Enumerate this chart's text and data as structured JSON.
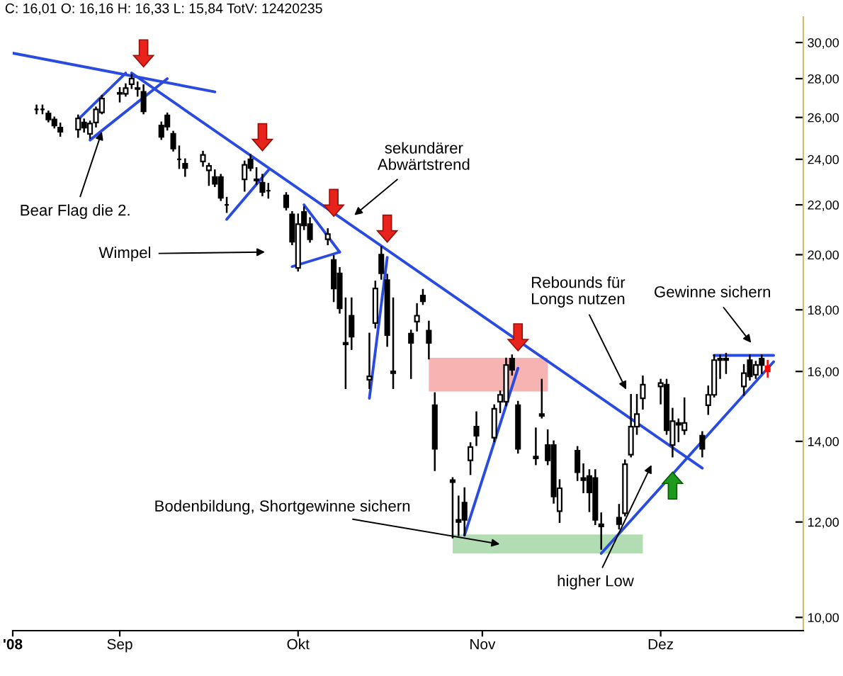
{
  "chart_data": {
    "type": "candlestick",
    "title": "C: 16,01 O: 16,16 H: 16,33 L: 15,84 TotV: 12420235",
    "x": [
      "2008-08-18",
      "2008-08-19",
      "2008-08-20",
      "2008-08-21",
      "2008-08-22",
      "2008-08-25",
      "2008-08-26",
      "2008-08-27",
      "2008-08-28",
      "2008-08-29",
      "2008-09-01",
      "2008-09-02",
      "2008-09-03",
      "2008-09-04",
      "2008-09-05",
      "2008-09-08",
      "2008-09-09",
      "2008-09-10",
      "2008-09-11",
      "2008-09-12",
      "2008-09-15",
      "2008-09-16",
      "2008-09-17",
      "2008-09-18",
      "2008-09-19",
      "2008-09-22",
      "2008-09-23",
      "2008-09-24",
      "2008-09-25",
      "2008-09-26",
      "2008-09-29",
      "2008-09-30",
      "2008-10-01",
      "2008-10-02",
      "2008-10-03",
      "2008-10-06",
      "2008-10-07",
      "2008-10-08",
      "2008-10-09",
      "2008-10-10",
      "2008-10-13",
      "2008-10-14",
      "2008-10-15",
      "2008-10-16",
      "2008-10-17",
      "2008-10-20",
      "2008-10-21",
      "2008-10-22",
      "2008-10-23",
      "2008-10-24",
      "2008-10-27",
      "2008-10-28",
      "2008-10-29",
      "2008-10-30",
      "2008-10-31",
      "2008-11-03",
      "2008-11-04",
      "2008-11-05",
      "2008-11-06",
      "2008-11-07",
      "2008-11-10",
      "2008-11-11",
      "2008-11-12",
      "2008-11-13",
      "2008-11-14",
      "2008-11-17",
      "2008-11-18",
      "2008-11-19",
      "2008-11-20",
      "2008-11-21",
      "2008-11-24",
      "2008-11-25",
      "2008-11-26",
      "2008-11-27",
      "2008-11-28",
      "2008-12-01",
      "2008-12-02",
      "2008-12-03",
      "2008-12-04",
      "2008-12-05",
      "2008-12-08",
      "2008-12-09",
      "2008-12-10",
      "2008-12-11",
      "2008-12-12",
      "2008-12-15",
      "2008-12-16",
      "2008-12-17",
      "2008-12-18",
      "2008-12-19"
    ],
    "ohlc": [
      [
        26.4,
        26.6,
        26.2,
        26.4
      ],
      [
        26.4,
        26.6,
        26.2,
        26.4
      ],
      [
        26.2,
        26.3,
        25.8,
        25.9
      ],
      [
        25.9,
        26.0,
        25.5,
        25.6
      ],
      [
        25.5,
        25.7,
        25.1,
        25.3
      ],
      [
        25.4,
        26.1,
        25.05,
        25.95
      ],
      [
        25.75,
        25.9,
        25.3,
        25.5
      ],
      [
        25.2,
        25.8,
        25.0,
        25.7
      ],
      [
        25.75,
        26.5,
        25.55,
        26.4
      ],
      [
        26.25,
        27.1,
        26.2,
        26.95
      ],
      [
        27.2,
        27.5,
        26.8,
        27.25
      ],
      [
        27.2,
        27.7,
        27.1,
        27.5
      ],
      [
        27.7,
        28.2,
        27.5,
        28.0
      ],
      [
        27.5,
        27.8,
        27.1,
        27.45
      ],
      [
        27.3,
        27.65,
        26.2,
        26.3
      ],
      [
        25.6,
        25.75,
        24.95,
        25.05
      ],
      [
        26.1,
        26.2,
        25.4,
        25.55
      ],
      [
        25.2,
        25.3,
        24.4,
        24.5
      ],
      [
        24.0,
        24.6,
        23.6,
        24.0
      ],
      [
        23.8,
        24.0,
        23.25,
        23.6
      ],
      [
        23.9,
        24.35,
        23.7,
        24.2
      ],
      [
        23.5,
        23.8,
        22.85,
        23.7
      ],
      [
        23.2,
        23.5,
        22.8,
        22.9
      ],
      [
        23.2,
        23.3,
        22.2,
        22.3
      ],
      [
        22.0,
        22.3,
        21.7,
        22.0
      ],
      [
        23.1,
        23.9,
        22.6,
        23.75
      ],
      [
        24.0,
        24.2,
        23.5,
        23.6
      ],
      [
        23.1,
        23.6,
        22.9,
        23.05
      ],
      [
        22.95,
        23.3,
        22.4,
        22.55
      ],
      [
        22.6,
        22.9,
        22.3,
        22.6
      ],
      [
        22.4,
        22.5,
        21.8,
        21.9
      ],
      [
        21.6,
        21.7,
        20.4,
        20.5
      ],
      [
        19.5,
        21.6,
        19.4,
        21.2
      ],
      [
        21.7,
        21.9,
        21.0,
        21.15
      ],
      [
        21.2,
        21.45,
        20.5,
        20.6
      ],
      [
        20.6,
        21.0,
        20.4,
        20.8
      ],
      [
        19.8,
        19.95,
        18.3,
        18.75
      ],
      [
        19.3,
        19.5,
        17.9,
        18.05
      ],
      [
        16.9,
        18.4,
        15.5,
        16.85
      ],
      [
        17.8,
        18.4,
        16.7,
        17.1
      ],
      [
        15.75,
        17.2,
        15.5,
        15.85
      ],
      [
        17.55,
        19.0,
        17.4,
        18.75
      ],
      [
        20.0,
        20.3,
        19.1,
        19.3
      ],
      [
        19.05,
        19.25,
        16.8,
        17.15
      ],
      [
        16.0,
        18.4,
        15.5,
        15.95
      ],
      [
        17.2,
        17.3,
        15.8,
        16.9
      ],
      [
        17.6,
        18.2,
        17.3,
        17.8
      ],
      [
        18.5,
        18.7,
        18.2,
        18.3
      ],
      [
        17.3,
        17.6,
        16.4,
        16.9
      ],
      [
        15.0,
        15.35,
        13.25,
        13.8
      ],
      [
        13.0,
        13.05,
        11.65,
        12.95
      ],
      [
        12.05,
        12.6,
        11.7,
        12.0
      ],
      [
        12.45,
        12.8,
        11.7,
        12.05
      ],
      [
        13.5,
        13.95,
        13.15,
        13.85
      ],
      [
        14.4,
        14.8,
        13.9,
        14.15
      ],
      [
        14.1,
        15.0,
        14.0,
        14.9
      ],
      [
        15.1,
        15.4,
        14.8,
        15.3
      ],
      [
        15.1,
        16.4,
        15.0,
        16.2
      ],
      [
        16.4,
        16.5,
        15.9,
        16.05
      ],
      [
        15.0,
        15.1,
        13.7,
        13.8
      ],
      [
        13.6,
        14.35,
        13.4,
        13.55
      ],
      [
        14.75,
        15.75,
        14.65,
        14.7
      ],
      [
        13.9,
        14.3,
        13.4,
        13.5
      ],
      [
        13.9,
        14.0,
        12.45,
        12.6
      ],
      [
        12.25,
        13.0,
        12.0,
        12.8
      ],
      [
        13.75,
        13.85,
        13.0,
        13.2
      ],
      [
        13.05,
        13.4,
        12.7,
        13.0
      ],
      [
        13.1,
        13.25,
        12.25,
        12.7
      ],
      [
        13.05,
        13.25,
        11.95,
        12.05
      ],
      [
        11.95,
        12.2,
        11.4,
        11.9
      ],
      [
        12.1,
        12.4,
        11.85,
        11.95
      ],
      [
        12.2,
        13.5,
        12.15,
        13.4
      ],
      [
        13.65,
        15.3,
        13.6,
        14.4
      ],
      [
        14.4,
        15.3,
        14.2,
        14.75
      ],
      [
        15.2,
        15.85,
        14.9,
        15.6
      ],
      [
        15.55,
        15.75,
        15.05,
        15.65
      ],
      [
        15.6,
        15.75,
        14.2,
        14.3
      ],
      [
        13.9,
        14.9,
        13.6,
        14.55
      ],
      [
        14.5,
        14.6,
        14.0,
        14.45
      ],
      [
        14.3,
        15.2,
        14.2,
        14.5
      ],
      [
        14.15,
        14.25,
        13.6,
        13.8
      ],
      [
        15.0,
        15.55,
        14.75,
        15.3
      ],
      [
        15.3,
        16.5,
        15.25,
        16.35
      ],
      [
        16.4,
        16.5,
        15.8,
        16.35
      ],
      [
        16.4,
        16.55,
        15.95,
        16.35
      ],
      [
        15.55,
        16.2,
        15.3,
        15.95
      ],
      [
        16.35,
        16.5,
        15.75,
        15.85
      ],
      [
        15.9,
        16.3,
        15.8,
        16.2
      ],
      [
        16.4,
        16.5,
        15.95,
        16.2
      ],
      [
        16.16,
        16.33,
        15.84,
        16.01
      ]
    ],
    "colors": [
      "#000000",
      "#000000",
      "#000000",
      "#000000",
      "#000000",
      "#ffffff",
      "#000000",
      "#ffffff",
      "#ffffff",
      "#ffffff",
      "#ffffff",
      "#ffffff",
      "#ffffff",
      "#000000",
      "#000000",
      "#000000",
      "#000000",
      "#000000",
      "#000000",
      "#000000",
      "#ffffff",
      "#ffffff",
      "#000000",
      "#000000",
      "#000000",
      "#ffffff",
      "#000000",
      "#000000",
      "#000000",
      "#000000",
      "#000000",
      "#000000",
      "#ffffff",
      "#000000",
      "#000000",
      "#ffffff",
      "#000000",
      "#000000",
      "#000000",
      "#000000",
      "#ffffff",
      "#ffffff",
      "#000000",
      "#000000",
      "#000000",
      "#000000",
      "#ffffff",
      "#000000",
      "#000000",
      "#000000",
      "#000000",
      "#000000",
      "#000000",
      "#ffffff",
      "#000000",
      "#ffffff",
      "#ffffff",
      "#ffffff",
      "#000000",
      "#000000",
      "#000000",
      "#000000",
      "#000000",
      "#000000",
      "#ffffff",
      "#000000",
      "#000000",
      "#000000",
      "#000000",
      "#000000",
      "#000000",
      "#ffffff",
      "#ffffff",
      "#ffffff",
      "#ffffff",
      "#ffffff",
      "#000000",
      "#ffffff",
      "#000000",
      "#ffffff",
      "#000000",
      "#ffffff",
      "#ffffff",
      "#000000",
      "#000000",
      "#ffffff",
      "#000000",
      "#ffffff",
      "#000000",
      "#ff0000"
    ],
    "series": [
      {
        "type": "line",
        "x": [
          "2008-10-23",
          "2008-11-12"
        ],
        "values": [
          16.4,
          16.4
        ],
        "lower": [
          15.4,
          15.4
        ],
        "upper": [
          16.4,
          16.4
        ],
        "color": "#f7b2b2"
      },
      {
        "type": "line",
        "x": [
          "2008-10-27",
          "2008-11-28"
        ],
        "values": [
          11.7,
          11.7
        ],
        "lower": [
          11.3,
          11.3
        ],
        "upper": [
          11.7,
          11.7
        ],
        "color": "#b2dcb2"
      },
      {
        "type": "line",
        "x": [
          "2008-08-14",
          "2008-09-17"
        ],
        "values": [
          29.4,
          27.3
        ],
        "color": "#2a4be0"
      },
      {
        "type": "line",
        "x": [
          "2008-09-03",
          "2008-12-08"
        ],
        "values": [
          28.3,
          13.3
        ],
        "color": "#2a4be0"
      },
      {
        "type": "line",
        "x": [
          "2008-08-25",
          "2008-09-02"
        ],
        "values": [
          25.9,
          28.3
        ],
        "color": "#2a4be0"
      },
      {
        "type": "line",
        "x": [
          "2008-08-27",
          "2008-09-09"
        ],
        "values": [
          24.9,
          28.0
        ],
        "color": "#2a4be0"
      },
      {
        "type": "line",
        "x": [
          "2008-09-19",
          "2008-09-26"
        ],
        "values": [
          21.4,
          23.5
        ],
        "color": "#2a4be0"
      },
      {
        "type": "line",
        "x": [
          "2008-10-02",
          "2008-10-08"
        ],
        "values": [
          22.0,
          20.1
        ],
        "color": "#2a4be0"
      },
      {
        "type": "line",
        "x": [
          "2008-09-30",
          "2008-10-08"
        ],
        "values": [
          19.55,
          20.1
        ],
        "color": "#2a4be0"
      },
      {
        "type": "line",
        "x": [
          "2008-10-13",
          "2008-10-16"
        ],
        "values": [
          15.2,
          19.9
        ],
        "color": "#2a4be0"
      },
      {
        "type": "line",
        "x": [
          "2008-10-29",
          "2008-11-07"
        ],
        "values": [
          11.7,
          16.1
        ],
        "color": "#2a4be0"
      },
      {
        "type": "line",
        "x": [
          "2008-11-21",
          "2008-12-20"
        ],
        "values": [
          11.3,
          16.3
        ],
        "color": "#2a4be0"
      },
      {
        "type": "line",
        "x": [
          "2008-12-10",
          "2008-12-20"
        ],
        "values": [
          16.5,
          16.5
        ],
        "color": "#2a4be0"
      }
    ],
    "annotations": [
      {
        "text": "Bear Flag die 2.",
        "x": "2008-08-29",
        "y": 25.3
      },
      "Wimpel",
      "sekundärer\nAbwärtstrend",
      "Rebounds für\nLongs nutzen",
      "Gewinne sichern",
      "Bodenbildung, Shortgewinne sichern",
      "higher Low"
    ],
    "xlim": [
      "2008-08-14",
      "2008-12-25"
    ],
    "xticks": [
      {
        "value": "2008-08-14",
        "label": "'08"
      },
      {
        "value": "2008-09-01",
        "label": "Sep"
      },
      {
        "value": "2008-10-01",
        "label": "Okt"
      },
      {
        "value": "2008-11-01",
        "label": "Nov"
      },
      {
        "value": "2008-12-01",
        "label": "Dez"
      }
    ],
    "ylim": [
      9.75,
      31.5
    ],
    "yticks": [
      {
        "value": 10,
        "label": "10,00"
      },
      {
        "value": 12,
        "label": "12,00"
      },
      {
        "value": 14,
        "label": "14,00"
      },
      {
        "value": 16,
        "label": "16,00"
      },
      {
        "value": 18,
        "label": "18,00"
      },
      {
        "value": 20,
        "label": "20,00"
      },
      {
        "value": 22,
        "label": "22,00"
      },
      {
        "value": 24,
        "label": "24,00"
      },
      {
        "value": 26,
        "label": "26,00"
      },
      {
        "value": 28,
        "label": "28,00"
      },
      {
        "value": 30,
        "label": "30,00"
      }
    ],
    "log": true
  }
}
